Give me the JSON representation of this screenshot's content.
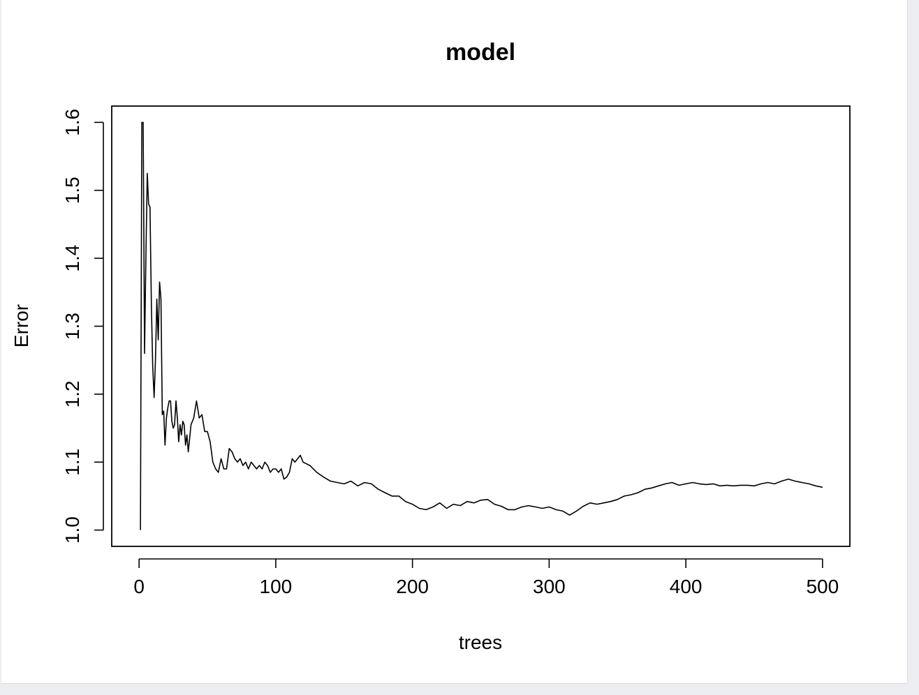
{
  "chart_data": {
    "type": "line",
    "title": "model",
    "xlabel": "trees",
    "ylabel": "Error",
    "xlim": [
      -20,
      520
    ],
    "ylim": [
      0.976,
      1.624
    ],
    "xticks": [
      0,
      100,
      200,
      300,
      400,
      500
    ],
    "xtick_labels": [
      "0",
      "100",
      "200",
      "300",
      "400",
      "500"
    ],
    "yticks": [
      1.0,
      1.1,
      1.2,
      1.3,
      1.4,
      1.5,
      1.6
    ],
    "ytick_labels": [
      "1.0",
      "1.1",
      "1.2",
      "1.3",
      "1.4",
      "1.5",
      "1.6"
    ],
    "grid": false,
    "line_color": "#000000",
    "series": [
      {
        "x": [
          1,
          2,
          3,
          4,
          5,
          6,
          7,
          8,
          9,
          10,
          11,
          12,
          13,
          14,
          15,
          16,
          17,
          18,
          19,
          20,
          21,
          22,
          23,
          24,
          25,
          26,
          27,
          28,
          29,
          30,
          31,
          32,
          33,
          34,
          35,
          36,
          37,
          38,
          40,
          42,
          44,
          46,
          48,
          50,
          52,
          54,
          56,
          58,
          60,
          62,
          64,
          66,
          68,
          70,
          72,
          74,
          76,
          78,
          80,
          82,
          84,
          86,
          88,
          90,
          92,
          94,
          96,
          98,
          100,
          102,
          104,
          106,
          108,
          110,
          112,
          114,
          116,
          118,
          120,
          125,
          130,
          135,
          140,
          145,
          150,
          155,
          160,
          165,
          170,
          175,
          180,
          185,
          190,
          195,
          200,
          205,
          210,
          215,
          220,
          225,
          230,
          235,
          240,
          245,
          250,
          255,
          260,
          265,
          270,
          275,
          280,
          285,
          290,
          295,
          300,
          305,
          310,
          315,
          320,
          325,
          330,
          335,
          340,
          345,
          350,
          355,
          360,
          365,
          370,
          375,
          380,
          385,
          390,
          395,
          400,
          405,
          410,
          415,
          420,
          425,
          430,
          435,
          440,
          445,
          450,
          455,
          460,
          465,
          470,
          475,
          480,
          485,
          490,
          495,
          500
        ],
        "y": [
          1.0,
          1.6,
          1.6,
          1.26,
          1.4,
          1.525,
          1.48,
          1.475,
          1.33,
          1.24,
          1.195,
          1.25,
          1.34,
          1.28,
          1.365,
          1.34,
          1.17,
          1.175,
          1.125,
          1.165,
          1.18,
          1.19,
          1.19,
          1.16,
          1.15,
          1.155,
          1.19,
          1.165,
          1.13,
          1.155,
          1.14,
          1.16,
          1.155,
          1.125,
          1.14,
          1.115,
          1.135,
          1.155,
          1.165,
          1.19,
          1.165,
          1.17,
          1.145,
          1.145,
          1.13,
          1.1,
          1.09,
          1.085,
          1.105,
          1.09,
          1.09,
          1.12,
          1.115,
          1.105,
          1.1,
          1.105,
          1.095,
          1.1,
          1.09,
          1.1,
          1.095,
          1.09,
          1.095,
          1.09,
          1.1,
          1.095,
          1.085,
          1.09,
          1.09,
          1.085,
          1.09,
          1.075,
          1.078,
          1.085,
          1.105,
          1.1,
          1.105,
          1.11,
          1.1,
          1.095,
          1.085,
          1.078,
          1.072,
          1.07,
          1.068,
          1.072,
          1.065,
          1.07,
          1.068,
          1.06,
          1.055,
          1.05,
          1.05,
          1.042,
          1.038,
          1.032,
          1.03,
          1.034,
          1.04,
          1.032,
          1.038,
          1.036,
          1.042,
          1.04,
          1.044,
          1.045,
          1.038,
          1.035,
          1.03,
          1.03,
          1.034,
          1.036,
          1.034,
          1.032,
          1.034,
          1.03,
          1.028,
          1.022,
          1.028,
          1.035,
          1.04,
          1.038,
          1.04,
          1.042,
          1.045,
          1.05,
          1.052,
          1.055,
          1.06,
          1.062,
          1.065,
          1.068,
          1.07,
          1.066,
          1.068,
          1.07,
          1.068,
          1.067,
          1.068,
          1.065,
          1.066,
          1.065,
          1.066,
          1.066,
          1.065,
          1.068,
          1.07,
          1.068,
          1.072,
          1.075,
          1.072,
          1.07,
          1.068,
          1.065,
          1.063
        ]
      }
    ]
  }
}
